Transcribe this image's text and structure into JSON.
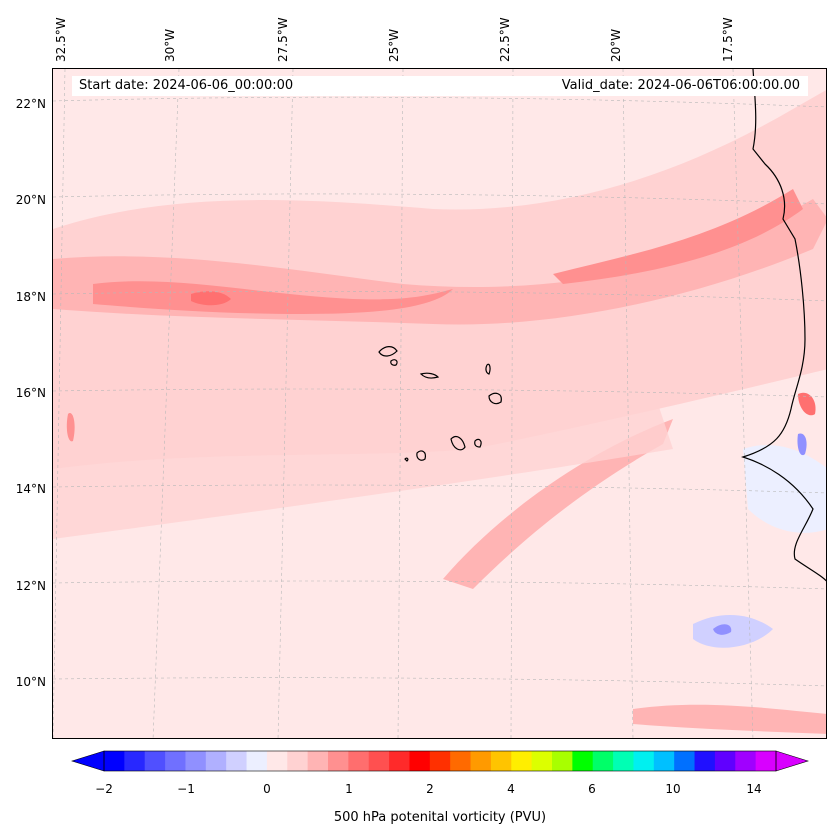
{
  "map": {
    "start_date_text": "Start date: 2024-06-06_00:00:00",
    "valid_date_text": "Valid_date: 2024-06-06T06:00:00.00",
    "lon_labels": [
      "32.5°W",
      "30°W",
      "27.5°W",
      "25°W",
      "22.5°W",
      "20°W",
      "17.5°W"
    ],
    "lat_labels": [
      "22°N",
      "20°N",
      "18°N",
      "16°N",
      "14°N",
      "12°N",
      "10°N"
    ],
    "background_color": "#ffe8e8",
    "coastline_color": "#000000"
  },
  "colorbar": {
    "label": "500 hPa potenital vorticity (PVU)",
    "ticks": [
      "−2",
      "−1",
      "0",
      "1",
      "2",
      "4",
      "6",
      "10",
      "14"
    ],
    "colors": [
      "#0000ff",
      "#2828ff",
      "#5050ff",
      "#7070ff",
      "#9090ff",
      "#b0b0ff",
      "#d0d0ff",
      "#ecefff",
      "#ffe8e8",
      "#ffd2d2",
      "#ffb4b4",
      "#ff9090",
      "#ff6e6e",
      "#ff5050",
      "#ff2a2a",
      "#ff0000",
      "#ff3000",
      "#ff6a00",
      "#ff9a00",
      "#ffc400",
      "#ffee00",
      "#dcff00",
      "#a8ff00",
      "#00ff00",
      "#00ff68",
      "#00ffb4",
      "#00f0f0",
      "#00c0ff",
      "#0070ff",
      "#2010ff",
      "#6000ff",
      "#a000ff",
      "#d800ff"
    ]
  }
}
